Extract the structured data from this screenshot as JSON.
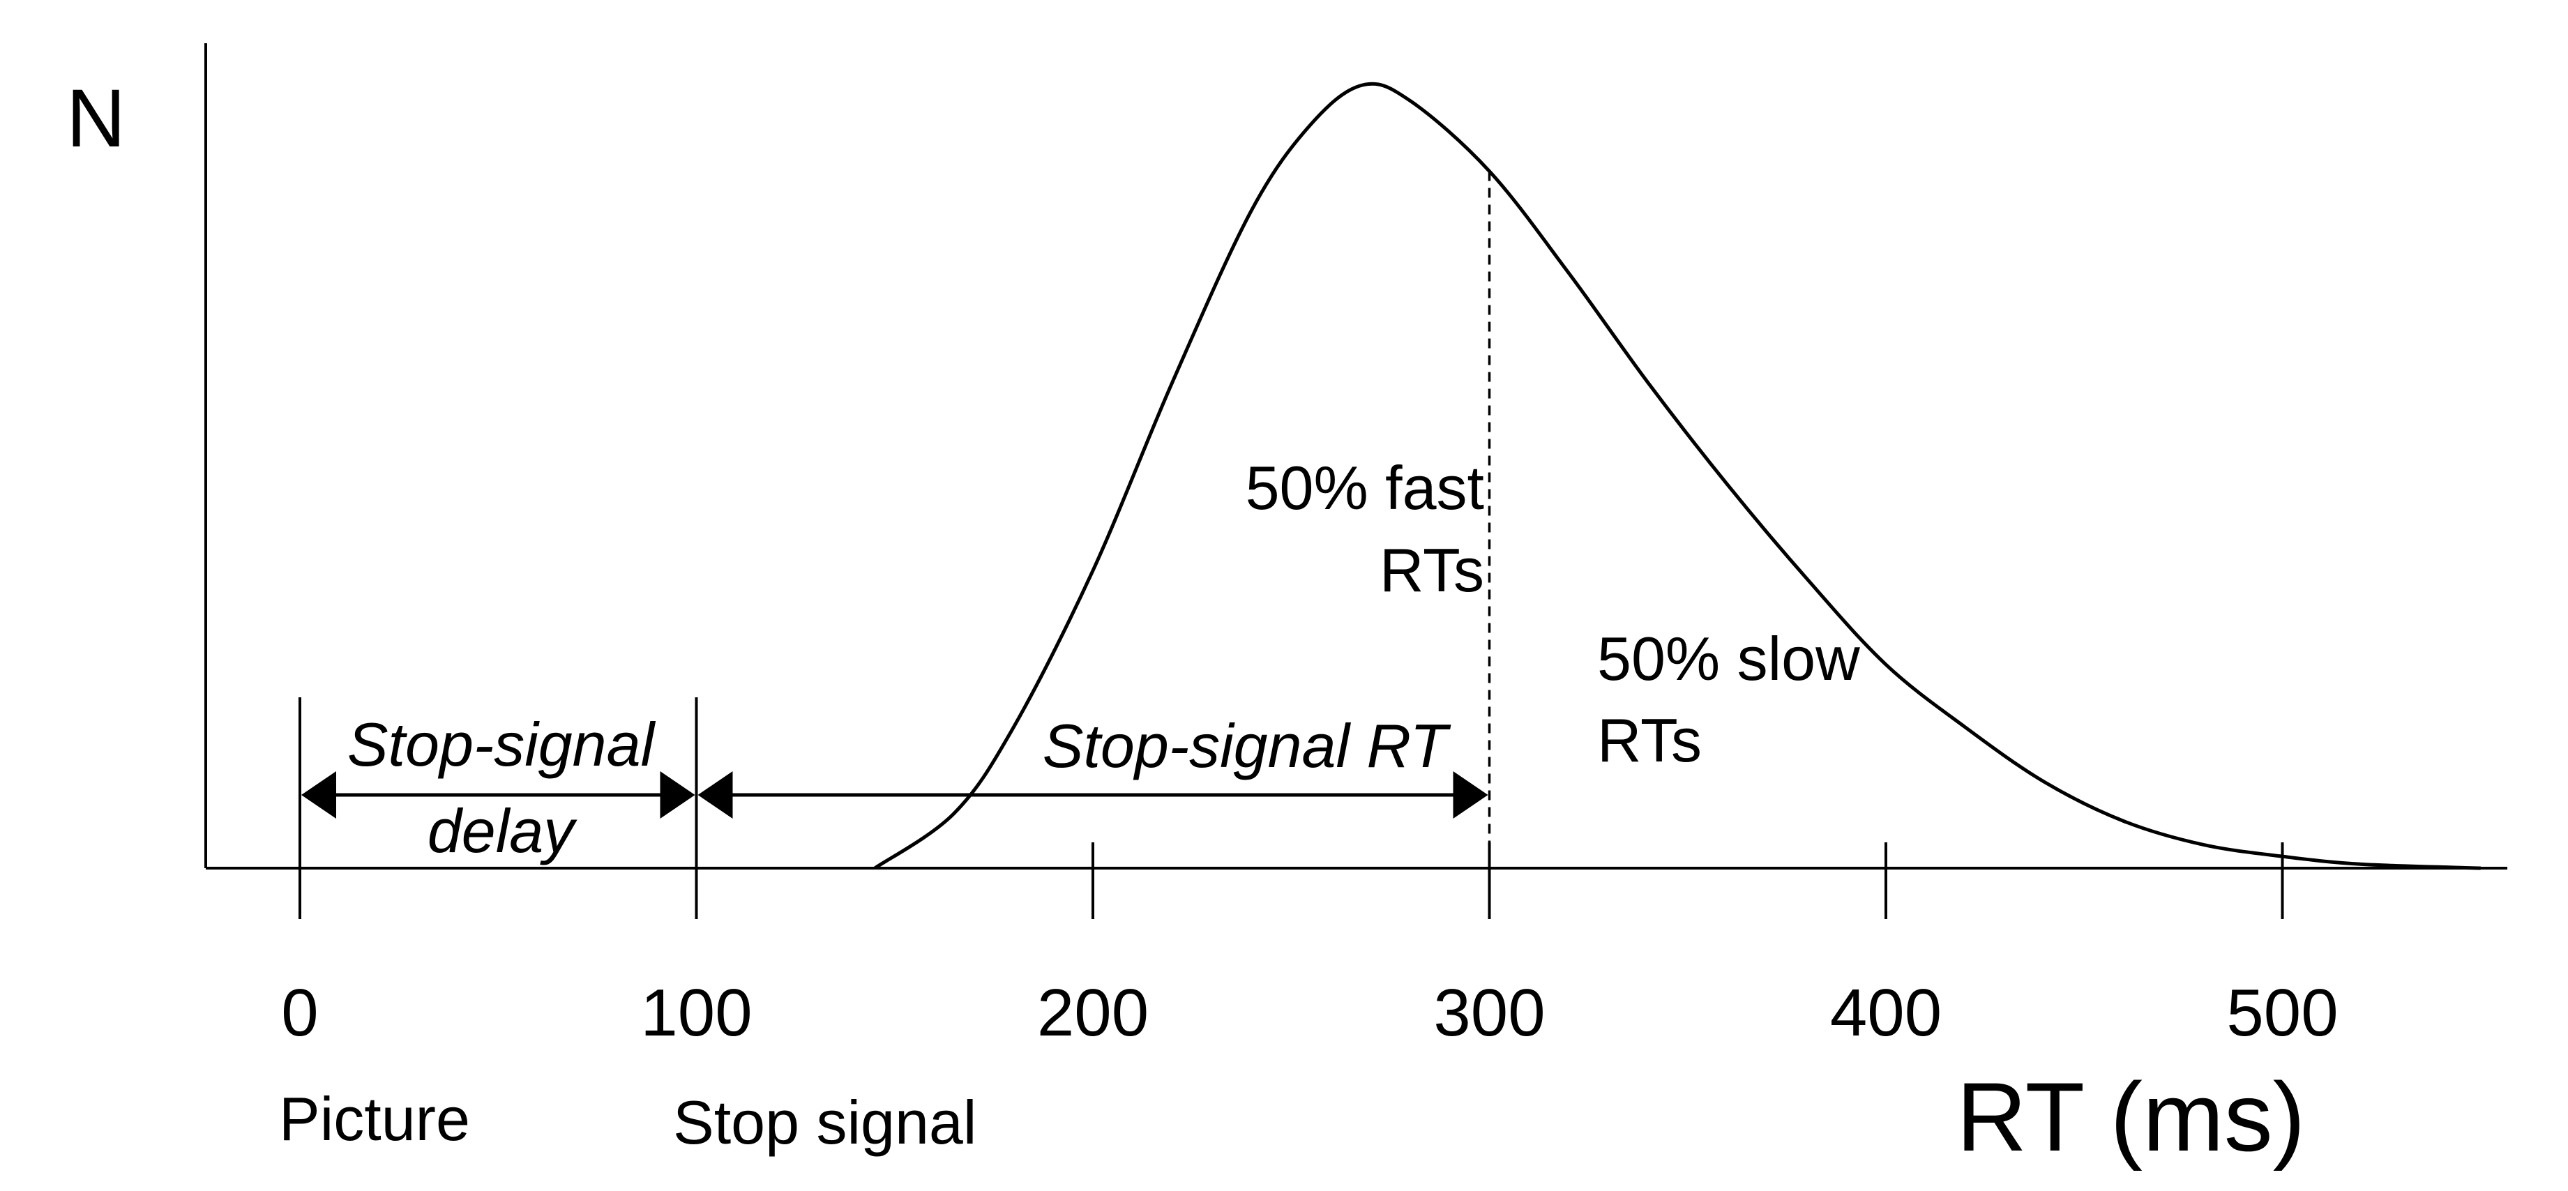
{
  "chart_data": {
    "type": "line",
    "title": "",
    "ylabel": "N",
    "xlabel": "RT (ms)",
    "xlim": [
      -25,
      550
    ],
    "xticks": [
      0,
      100,
      200,
      300,
      400,
      500
    ],
    "xtick_labels": [
      "0",
      "100",
      "200",
      "300",
      "400",
      "500"
    ],
    "grid": false,
    "series": [
      {
        "x": [
          145,
          165,
          180,
          200,
          220,
          240,
          255,
          268,
          280,
          300,
          320,
          340,
          360,
          380,
          400,
          420,
          440,
          460,
          480,
          500,
          520,
          550
        ],
        "y": [
          0,
          0.07,
          0.18,
          0.38,
          0.62,
          0.84,
          0.95,
          1.0,
          0.98,
          0.89,
          0.76,
          0.62,
          0.49,
          0.37,
          0.26,
          0.18,
          0.11,
          0.06,
          0.03,
          0.015,
          0.005,
          0
        ]
      }
    ],
    "median_rt": 300,
    "events": [
      {
        "x": 0,
        "label": "Picture"
      },
      {
        "x": 100,
        "label": "Stop signal"
      }
    ],
    "intervals": [
      {
        "from": 0,
        "to": 100,
        "label_line1": "Stop-signal",
        "label_line2": "delay"
      },
      {
        "from": 100,
        "to": 300,
        "label_line1": "Stop-signal RT"
      }
    ],
    "annotations": {
      "fast_line1": "50% fast",
      "fast_line2": "RTs",
      "slow_line1": "50% slow",
      "slow_line2": "RTs"
    }
  }
}
